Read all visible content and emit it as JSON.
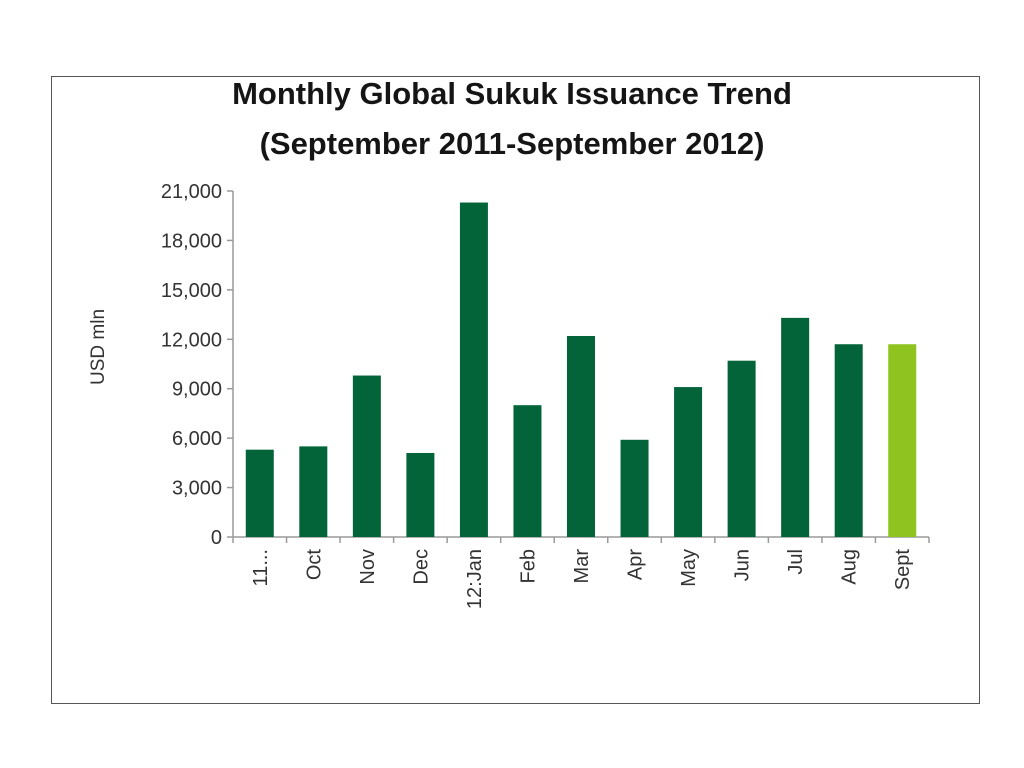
{
  "chart_data": {
    "type": "bar",
    "title": "Monthly Global  Sukuk Issuance Trend",
    "subtitle": "(September 2011-September 2012)",
    "ylabel": "USD mln",
    "xlabel": "",
    "ylim": [
      0,
      21000
    ],
    "yticks": [
      0,
      3000,
      6000,
      9000,
      12000,
      15000,
      18000,
      21000
    ],
    "ytick_labels": [
      "0",
      "3,000",
      "6,000",
      "9,000",
      "12,000",
      "15,000",
      "18,000",
      "21,000"
    ],
    "categories": [
      "11...",
      "Oct",
      "Nov",
      "Dec",
      "12:Jan",
      "Feb",
      "Mar",
      "Apr",
      "May",
      "Jun",
      "Jul",
      "Aug",
      "Sept"
    ],
    "values": [
      5300,
      5500,
      9800,
      5100,
      20300,
      8000,
      12200,
      5900,
      9100,
      10700,
      13300,
      11700,
      11700
    ],
    "colors": {
      "bar": "#036439",
      "highlight": "#8fc31f",
      "axis": "#9a9a9a"
    },
    "highlight_index": 12,
    "grid": false,
    "legend": "none"
  }
}
